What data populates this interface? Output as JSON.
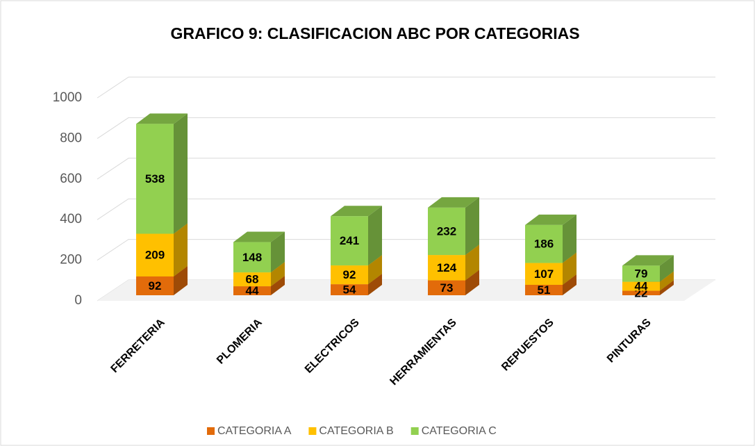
{
  "chart_data": {
    "type": "bar3d-stacked",
    "title": "GRAFICO 9: CLASIFICACION ABC POR CATEGORIAS",
    "categories": [
      "FERRETERIA",
      "PLOMERIA",
      "ELECTRICOS",
      "HERRAMIENTAS",
      "REPUESTOS",
      "PINTURAS"
    ],
    "series": [
      {
        "name": "CATEGORIA A",
        "color": "#E26B0A",
        "values": [
          92,
          44,
          54,
          73,
          51,
          22
        ]
      },
      {
        "name": "CATEGORIA B",
        "color": "#FFC000",
        "values": [
          209,
          68,
          92,
          124,
          107,
          44
        ]
      },
      {
        "name": "CATEGORIA C",
        "color": "#92D050",
        "values": [
          538,
          148,
          241,
          232,
          186,
          79
        ]
      }
    ],
    "ylim": [
      0,
      1000
    ],
    "yticks": [
      0,
      200,
      400,
      600,
      800,
      1000
    ],
    "grid": true,
    "legend": "bottom"
  }
}
